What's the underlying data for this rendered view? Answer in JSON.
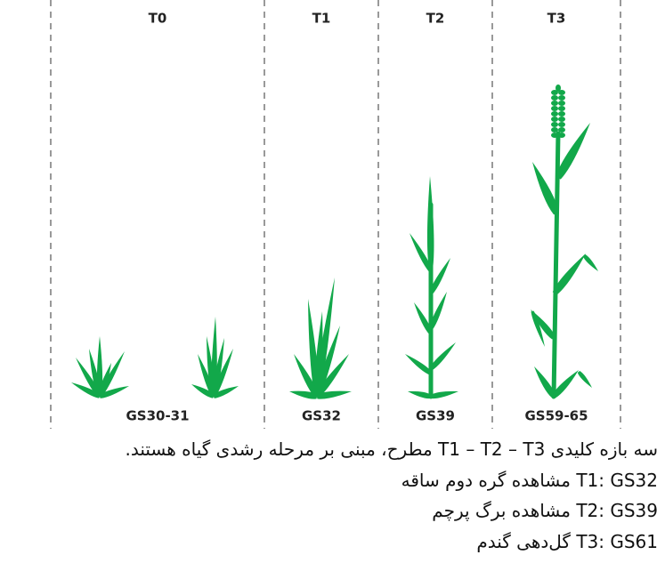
{
  "columns": [
    {
      "label": "T0",
      "stage": "GS30-31"
    },
    {
      "label": "T1",
      "stage": "GS32"
    },
    {
      "label": "T2",
      "stage": "GS39"
    },
    {
      "label": "T3",
      "stage": "GS59-65"
    }
  ],
  "notes": [
    "سه بازه کلیدی T1 – T2 – T3  مطرح، مبنی بر مرحله رشدی گیاه هستند.",
    "T1: GS32 مشاهده گره دوم ساقه",
    "T2: GS39 مشاهده برگ پرچم",
    "T3: GS61  گل‌دهی گندم"
  ]
}
